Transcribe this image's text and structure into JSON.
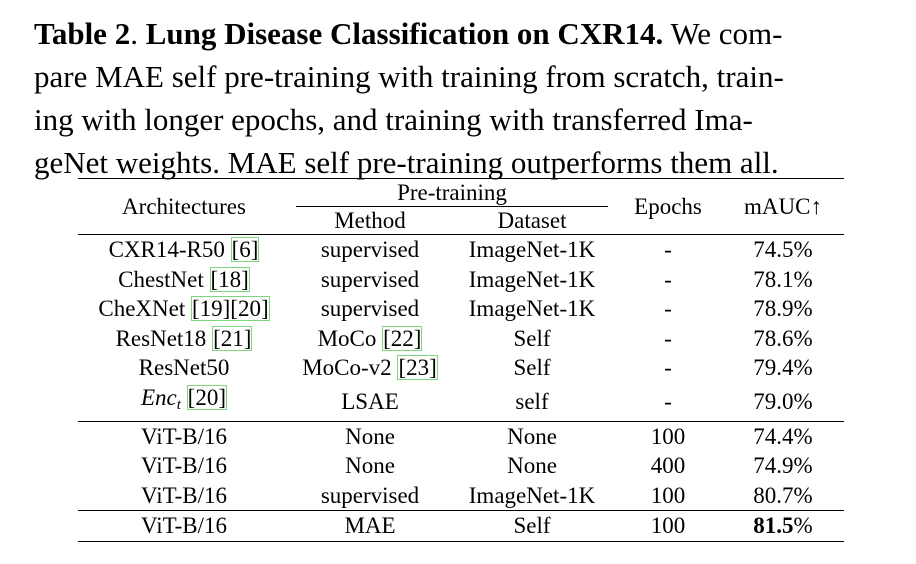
{
  "caption": {
    "label": "Table 2",
    "sep": ".",
    "title": "Lung Disease Classification on CXR14.",
    "body_line1": " We com-",
    "body_line2": "pare MAE self pre-training with training from scratch, train-",
    "body_line3": "ing with longer epochs, and training with transferred Ima-",
    "body_line4": "geNet weights. MAE self pre-training outperforms them all."
  },
  "table": {
    "headers": {
      "architectures": "Architectures",
      "pretraining": "Pre-training",
      "method": "Method",
      "dataset": "Dataset",
      "epochs": "Epochs",
      "mauc": "mAUC↑"
    },
    "rows": [
      {
        "arch": "CXR14-R50",
        "arch_cite": "[6]",
        "method": "supervised",
        "dataset": "ImageNet-1K",
        "epochs": "-",
        "mauc": "74.5%"
      },
      {
        "arch": "ChestNet",
        "arch_cite": "[18]",
        "method": "supervised",
        "dataset": "ImageNet-1K",
        "epochs": "-",
        "mauc": "78.1%"
      },
      {
        "arch": "CheXNet",
        "arch_cite": "[19][20]",
        "method": "supervised",
        "dataset": "ImageNet-1K",
        "epochs": "-",
        "mauc": "78.9%"
      },
      {
        "arch": "ResNet18",
        "arch_cite": "[21]",
        "method": "MoCo",
        "method_cite": "[22]",
        "dataset": "Self",
        "epochs": "-",
        "mauc": "78.6%"
      },
      {
        "arch": "ResNet50",
        "method": "MoCo-v2",
        "method_cite": "[23]",
        "dataset": "Self",
        "epochs": "-",
        "mauc": "79.4%"
      },
      {
        "arch_math": "Enc",
        "arch_sub": "t",
        "arch_cite": "[20]",
        "method": "LSAE",
        "dataset": "self",
        "epochs": "-",
        "mauc": "79.0%"
      },
      {
        "arch": "ViT-B/16",
        "method": "None",
        "dataset": "None",
        "epochs": "100",
        "mauc": "74.4%"
      },
      {
        "arch": "ViT-B/16",
        "method": "None",
        "dataset": "None",
        "epochs": "400",
        "mauc": "74.9%"
      },
      {
        "arch": "ViT-B/16",
        "method": "supervised",
        "dataset": "ImageNet-1K",
        "epochs": "100",
        "mauc": "80.7%"
      },
      {
        "arch": "ViT-B/16",
        "method": "MAE",
        "dataset": "Self",
        "epochs": "100",
        "mauc_bold": "81.5",
        "mauc_rest": "%"
      }
    ]
  }
}
